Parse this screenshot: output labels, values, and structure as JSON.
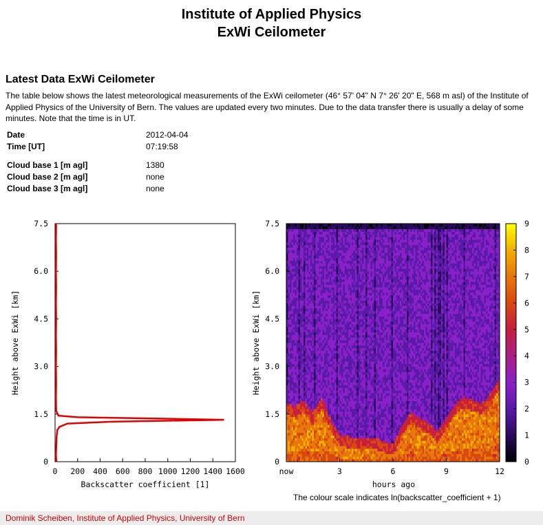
{
  "header": {
    "line1": "Institute of Applied Physics",
    "line2": "ExWi Ceilometer"
  },
  "section_title": "Latest Data ExWi Ceilometer",
  "intro": "The table below shows the latest meteorological measurements of the ExWi ceilometer (46° 57' 04\" N 7° 26' 20\" E, 568 m asl) of the Institute of Applied Physics of the University of Bern. The values are updated every two minutes. Due to the data transfer there is usually a delay of some minutes. Note that the time is in UT.",
  "measurements": [
    {
      "label": "Date",
      "value": "2012-04-04"
    },
    {
      "label": "Time [UT]",
      "value": "07:19:58"
    },
    {
      "label": "Cloud base 1 [m agl]",
      "value": "1380"
    },
    {
      "label": "Cloud base 2 [m agl]",
      "value": "none"
    },
    {
      "label": "Cloud base 3 [m agl]",
      "value": "none"
    }
  ],
  "chart_data": [
    {
      "type": "line",
      "xlabel": "Backscatter coefficient [1]",
      "ylabel": "Height above ExWi [km]",
      "xlim": [
        0,
        1600
      ],
      "ylim": [
        0,
        7.5
      ],
      "xticks": [
        "0",
        "200",
        "400",
        "600",
        "800",
        "1000",
        "1200",
        "1400",
        "1600"
      ],
      "yticks": [
        "0",
        "1.5",
        "3.0",
        "4.5",
        "6.0",
        "7.5"
      ],
      "series": [
        {
          "color": "#e00000",
          "points": [
            [
              12,
              0.0
            ],
            [
              8,
              0.2
            ],
            [
              10,
              0.4
            ],
            [
              12,
              0.6
            ],
            [
              14,
              0.8
            ],
            [
              20,
              1.0
            ],
            [
              40,
              1.1
            ],
            [
              110,
              1.2
            ],
            [
              500,
              1.26
            ],
            [
              1500,
              1.32
            ],
            [
              900,
              1.36
            ],
            [
              200,
              1.4
            ],
            [
              30,
              1.45
            ],
            [
              10,
              1.6
            ],
            [
              8,
              2.0
            ],
            [
              10,
              2.5
            ],
            [
              8,
              3.0
            ],
            [
              10,
              3.5
            ],
            [
              8,
              4.0
            ],
            [
              10,
              4.5
            ],
            [
              8,
              5.0
            ],
            [
              10,
              5.5
            ],
            [
              8,
              6.0
            ],
            [
              10,
              6.5
            ],
            [
              8,
              7.0
            ],
            [
              10,
              7.5
            ]
          ]
        }
      ]
    },
    {
      "type": "heatmap",
      "xlabel": "hours ago",
      "ylabel": "Height above ExWi [km]",
      "xticks": [
        "now",
        "3",
        "6",
        "9",
        "12"
      ],
      "yticks": [
        "0",
        "1.5",
        "3.0",
        "4.5",
        "6.0",
        "7.5"
      ],
      "colorbar": {
        "min": 0,
        "max": 9,
        "ticks": [
          "0",
          "1",
          "2",
          "3",
          "4",
          "5",
          "6",
          "7",
          "8",
          "9"
        ]
      },
      "colormap": [
        "#000000",
        "#2a0a5e",
        "#5a1aa8",
        "#8a20c8",
        "#a8208c",
        "#c8203c",
        "#d84a10",
        "#e8780c",
        "#f2b000",
        "#ffff00"
      ],
      "top_of_low_layer_km": [
        [
          0.0,
          1.5
        ],
        [
          0.5,
          1.4
        ],
        [
          1.0,
          1.6
        ],
        [
          1.5,
          1.2
        ],
        [
          2.0,
          1.7
        ],
        [
          2.5,
          1.0
        ],
        [
          3.0,
          0.5
        ],
        [
          4.0,
          0.4
        ],
        [
          5.0,
          0.4
        ],
        [
          5.5,
          0.3
        ],
        [
          6.0,
          0.2
        ],
        [
          6.5,
          0.8
        ],
        [
          7.0,
          1.2
        ],
        [
          8.0,
          0.9
        ],
        [
          8.5,
          0.6
        ],
        [
          9.0,
          1.0
        ],
        [
          9.5,
          1.5
        ],
        [
          10.0,
          1.7
        ],
        [
          11.0,
          1.5
        ],
        [
          11.5,
          1.8
        ],
        [
          12.0,
          2.3
        ]
      ]
    }
  ],
  "caption": "The colour scale indicates ln(backscatter_coefficient + 1)",
  "footer": {
    "author": "Dominik Scheiben",
    "institute": "Institute of Applied Physics",
    "university": "University of Bern"
  }
}
